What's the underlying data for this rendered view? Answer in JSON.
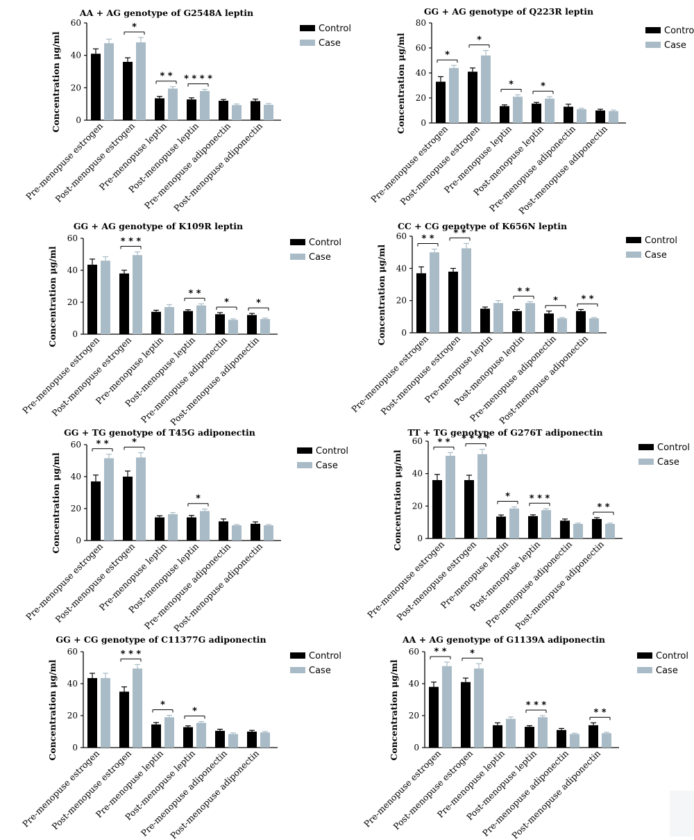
{
  "legend_labels": [
    "Control",
    "Case"
  ],
  "colors": {
    "control": "#000000",
    "case": "#a9bbc6"
  },
  "chart_data": [
    {
      "type": "bar",
      "title": "AA + AG genotype of G2548A leptin",
      "ylabel": "Concentration μg/ml",
      "ylim": [
        0,
        60
      ],
      "yticks": [
        "0",
        "20",
        "40",
        "60"
      ],
      "categories": [
        "Pre-menopuse estrogen",
        "Post-menopuse estrogen",
        "Pre-menopuse leptin",
        "Post-menopuse leptin",
        "Pre-menopuse adiponectin",
        "Post-menopuse adiponectin"
      ],
      "series": [
        {
          "name": "Control",
          "values": [
            41,
            36,
            13.5,
            12.8,
            12,
            11.8
          ],
          "errors": [
            3,
            2.5,
            1.2,
            1,
            0.8,
            1.2
          ]
        },
        {
          "name": "Case",
          "values": [
            47.5,
            48,
            19.5,
            18,
            9.3,
            9.5
          ],
          "errors": [
            2.5,
            3,
            1.2,
            1,
            0.7,
            0.8
          ]
        }
      ],
      "significance": [
        null,
        "*",
        "* *",
        "* * * *",
        null,
        null
      ],
      "legend": "top-right"
    },
    {
      "type": "bar",
      "title": "GG + AG genotype of Q223R leptin",
      "ylabel": "Concentration μg/ml",
      "ylim": [
        0,
        80
      ],
      "yticks": [
        "0",
        "20",
        "40",
        "60",
        "80"
      ],
      "categories": [
        "Pre-menopuse estrogen",
        "Post-menopuse estrogen",
        "Pre-menopuse leptin",
        "Post-menopuse leptin",
        "Pre-menopuse adiponectin",
        "Post-menopuse adiponectin"
      ],
      "series": [
        {
          "name": "Control",
          "values": [
            33,
            41,
            13.5,
            15.5,
            13,
            10
          ],
          "errors": [
            4,
            3,
            1,
            1,
            2,
            1
          ]
        },
        {
          "name": "Case",
          "values": [
            44,
            54,
            21,
            19.5,
            11,
            9.5
          ],
          "errors": [
            2,
            4,
            1.5,
            1.5,
            0.8,
            0.8
          ]
        }
      ],
      "significance": [
        "*",
        "*",
        "*",
        "*",
        null,
        null
      ],
      "legend": "top-right"
    },
    {
      "type": "bar",
      "title": "GG + AG genotype of K109R leptin",
      "ylabel": "Concentration μg/ml",
      "ylim": [
        0,
        60
      ],
      "yticks": [
        "0",
        "20",
        "40",
        "60"
      ],
      "categories": [
        "Pre-menopuse estrogen",
        "Post-menopuse estrogen",
        "Pre-menopuse leptin",
        "Post-menopuse leptin",
        "Pre-menopuse adiponectin",
        "Post-menopuse adiponectin"
      ],
      "series": [
        {
          "name": "Control",
          "values": [
            43.5,
            38,
            14,
            14.5,
            12.5,
            12
          ],
          "errors": [
            3.5,
            2,
            1,
            0.8,
            1,
            1
          ]
        },
        {
          "name": "Case",
          "values": [
            46,
            49.5,
            17,
            18,
            9,
            9.5
          ],
          "errors": [
            2.5,
            2,
            1.5,
            1,
            0.6,
            0.6
          ]
        }
      ],
      "significance": [
        null,
        "* * *",
        null,
        "* *",
        "*",
        "*"
      ],
      "legend": "top-right"
    },
    {
      "type": "bar",
      "title": "CC + CG genotype of K656N leptin",
      "ylabel": "Concentration μg/ml",
      "ylim": [
        0,
        60
      ],
      "yticks": [
        "0",
        "20",
        "40",
        "60"
      ],
      "categories": [
        "Pre-menopuse estrogen",
        "Post-menopuse estrogen",
        "Pre-menopuse leptin",
        "Post-menopuse leptin",
        "Pre-menopuse adiponectin",
        "Post-menopuse adiponectin"
      ],
      "series": [
        {
          "name": "Control",
          "values": [
            37,
            38,
            15,
            13.5,
            12,
            13.5
          ],
          "errors": [
            4,
            2,
            1,
            1,
            1.5,
            1
          ]
        },
        {
          "name": "Case",
          "values": [
            50,
            52.5,
            18.5,
            18.5,
            9,
            9
          ],
          "errors": [
            2,
            3,
            1.5,
            0.8,
            0.5,
            0.5
          ]
        }
      ],
      "significance": [
        "* *",
        "* *",
        null,
        "* *",
        "*",
        "* *"
      ],
      "legend": "top-right"
    },
    {
      "type": "bar",
      "title": "GG + TG genotype of T45G adiponectin",
      "ylabel": "Concentration μg/ml",
      "ylim": [
        0,
        60
      ],
      "yticks": [
        "0",
        "20",
        "40",
        "60"
      ],
      "categories": [
        "Pre-menopuse estrogen",
        "Post-menopuse estrogen",
        "Pre-menopuse leptin",
        "Post-menopuse leptin",
        "Pre-menopuse adiponectin",
        "Post-menopuse adiponectin"
      ],
      "series": [
        {
          "name": "Control",
          "values": [
            37,
            40,
            14.5,
            14.5,
            12,
            10.5
          ],
          "errors": [
            4,
            3.5,
            1,
            1.2,
            1.5,
            1.2
          ]
        },
        {
          "name": "Case",
          "values": [
            51.5,
            52,
            16.5,
            18.5,
            9.5,
            9.5
          ],
          "errors": [
            2.5,
            3,
            1,
            1.2,
            0.5,
            0.5
          ]
        }
      ],
      "significance": [
        "* *",
        "*",
        null,
        "*",
        null,
        null
      ],
      "legend": "top-right"
    },
    {
      "type": "bar",
      "title": "TT + TG genotype of G276T adiponectin",
      "ylabel": "Concentration μg/ml",
      "ylim": [
        0,
        60
      ],
      "yticks": [
        "0",
        "20",
        "40",
        "60"
      ],
      "categories": [
        "Pre-menopuse estrogen",
        "Post-menopuse estrogen",
        "Pre-menopuse leptin",
        "Post-menopuse leptin",
        "Pre-menopuse adiponectin",
        "Post-menopuse adiponectin"
      ],
      "series": [
        {
          "name": "Control",
          "values": [
            36,
            36,
            13.5,
            13.8,
            11,
            12
          ],
          "errors": [
            3.5,
            3,
            1,
            0.8,
            1,
            0.8
          ]
        },
        {
          "name": "Case",
          "values": [
            51,
            52,
            18.5,
            17.5,
            9,
            9
          ],
          "errors": [
            2,
            3,
            1,
            0.8,
            0.5,
            0.5
          ]
        }
      ],
      "significance": [
        "* *",
        "* * * *",
        "*",
        "* * *",
        null,
        "* *"
      ],
      "legend": "top-right"
    },
    {
      "type": "bar",
      "title": "GG + CG genotype of C11377G adiponectin",
      "ylabel": "Concentration μg/ml",
      "ylim": [
        0,
        60
      ],
      "yticks": [
        "0",
        "20",
        "40",
        "60"
      ],
      "categories": [
        "Pre-menopuse estrogen",
        "Post-menopuse estrogen",
        "Pre-menopuse leptin",
        "Post-menopuse leptin",
        "Pre-menopuse adiponectin",
        "Post-menopuse adiponectin"
      ],
      "series": [
        {
          "name": "Control",
          "values": [
            43.5,
            35,
            14.5,
            12.8,
            10.5,
            10
          ],
          "errors": [
            3,
            3,
            1.2,
            0.8,
            1,
            0.8
          ]
        },
        {
          "name": "Case",
          "values": [
            43.5,
            49.5,
            19,
            15.5,
            8.5,
            9.5
          ],
          "errors": [
            3,
            2.5,
            1.2,
            0.8,
            0.7,
            0.6
          ]
        }
      ],
      "significance": [
        null,
        "* * *",
        "*",
        "*",
        null,
        null
      ],
      "legend": "top-right"
    },
    {
      "type": "bar",
      "title": "AA + AG genotype of G1139A adiponectin",
      "ylabel": "Concentration μg/ml",
      "ylim": [
        0,
        60
      ],
      "yticks": [
        "0",
        "20",
        "40",
        "60"
      ],
      "categories": [
        "Pre-menopuse estrogen",
        "Post-menopuse estrogen",
        "Pre-menopuse leptin",
        "Post-menopuse leptin",
        "Pre-menopuse adiponectin",
        "Post-menopuse adiponectin"
      ],
      "series": [
        {
          "name": "Control",
          "values": [
            38,
            41,
            14,
            13,
            11,
            14
          ],
          "errors": [
            3,
            2.5,
            1.5,
            0.7,
            1,
            1.5
          ]
        },
        {
          "name": "Case",
          "values": [
            51,
            49.5,
            18,
            19,
            8.5,
            9
          ],
          "errors": [
            2.5,
            3,
            1.2,
            1,
            0.5,
            0.6
          ]
        }
      ],
      "significance": [
        "* *",
        "*",
        null,
        "* * *",
        null,
        "* *"
      ],
      "legend": "top-right"
    }
  ]
}
